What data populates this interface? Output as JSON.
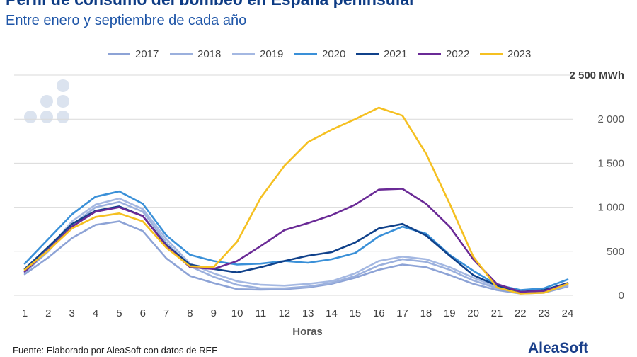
{
  "header": {
    "title": "Perfil de consumo del bombeo en España peninsular",
    "subtitle": "Entre enero y septiembre de cada año"
  },
  "footer": {
    "source": "Fuente: Elaborado por AleaSoft con datos de REE",
    "brand": "AleaSoft"
  },
  "chart_data": {
    "type": "line",
    "title": "Perfil de consumo del bombeo en España peninsular",
    "subtitle": "Entre enero y septiembre de cada año",
    "xlabel": "Horas",
    "ylabel": "",
    "y_unit_label": "2 500 MWh",
    "x": [
      1,
      2,
      3,
      4,
      5,
      6,
      7,
      8,
      9,
      10,
      11,
      12,
      13,
      14,
      15,
      16,
      17,
      18,
      19,
      20,
      21,
      22,
      23,
      24
    ],
    "ylim": [
      0,
      2500
    ],
    "yticks": [
      "0",
      "500",
      "1 000",
      "1 500",
      "2 000"
    ],
    "grid": true,
    "legend_position": "top",
    "series": [
      {
        "name": "2017",
        "color": "#8da3d6",
        "values": [
          240,
          430,
          650,
          800,
          840,
          730,
          420,
          220,
          140,
          70,
          65,
          70,
          90,
          130,
          200,
          290,
          350,
          320,
          230,
          130,
          60,
          20,
          30,
          100
        ]
      },
      {
        "name": "2018",
        "color": "#9bb0dd",
        "values": [
          260,
          500,
          800,
          1000,
          1060,
          950,
          600,
          330,
          210,
          120,
          80,
          80,
          100,
          140,
          220,
          340,
          410,
          380,
          290,
          170,
          80,
          30,
          40,
          110
        ]
      },
      {
        "name": "2019",
        "color": "#a4b8e2",
        "values": [
          270,
          520,
          840,
          1030,
          1100,
          980,
          640,
          360,
          250,
          160,
          120,
          110,
          130,
          160,
          250,
          390,
          440,
          410,
          320,
          200,
          100,
          40,
          50,
          130
        ]
      },
      {
        "name": "2020",
        "color": "#3a90d8",
        "values": [
          360,
          640,
          920,
          1120,
          1180,
          1040,
          680,
          460,
          390,
          350,
          360,
          390,
          370,
          410,
          480,
          670,
          780,
          700,
          460,
          280,
          120,
          60,
          80,
          180
        ]
      },
      {
        "name": "2021",
        "color": "#10418a",
        "values": [
          300,
          550,
          810,
          960,
          1010,
          900,
          570,
          350,
          300,
          260,
          320,
          390,
          450,
          490,
          600,
          760,
          810,
          680,
          450,
          230,
          110,
          40,
          60,
          140
        ]
      },
      {
        "name": "2022",
        "color": "#6a2a96",
        "values": [
          270,
          520,
          780,
          950,
          1000,
          900,
          560,
          320,
          300,
          390,
          560,
          740,
          820,
          910,
          1030,
          1200,
          1210,
          1040,
          780,
          410,
          130,
          40,
          50,
          130
        ]
      },
      {
        "name": "2023",
        "color": "#f5c021",
        "values": [
          290,
          510,
          760,
          890,
          930,
          840,
          540,
          330,
          320,
          610,
          1110,
          1470,
          1740,
          1880,
          2000,
          2130,
          2040,
          1610,
          1040,
          440,
          90,
          20,
          30,
          130
        ]
      }
    ]
  }
}
